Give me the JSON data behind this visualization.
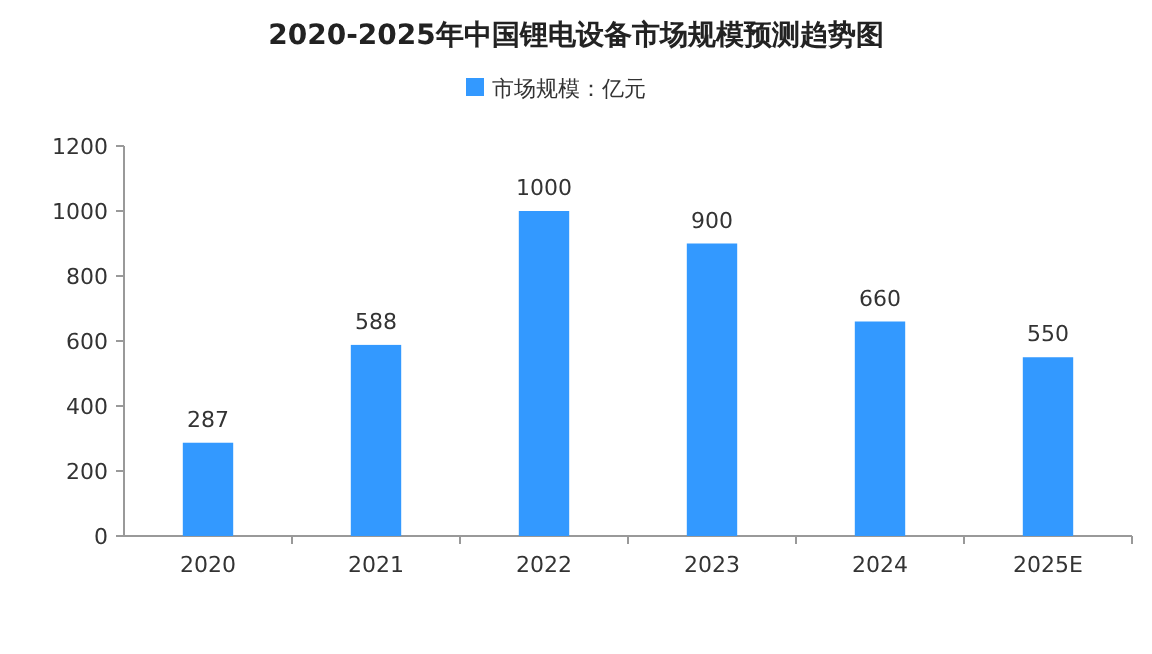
{
  "chart_data": {
    "type": "bar",
    "title": "2020-2025年中国锂电设备市场规模预测趋势图",
    "categories": [
      "2020",
      "2021",
      "2022",
      "2023",
      "2024",
      "2025E"
    ],
    "series": [
      {
        "name": "市场规模：亿元",
        "color": "#3399ff",
        "values": [
          287,
          588,
          1000,
          900,
          660,
          550
        ]
      }
    ],
    "ylim": [
      0,
      1200
    ],
    "yticks": [
      0,
      200,
      400,
      600,
      800,
      1000,
      1200
    ],
    "data_labels": true,
    "legend": "top",
    "grid": false
  }
}
